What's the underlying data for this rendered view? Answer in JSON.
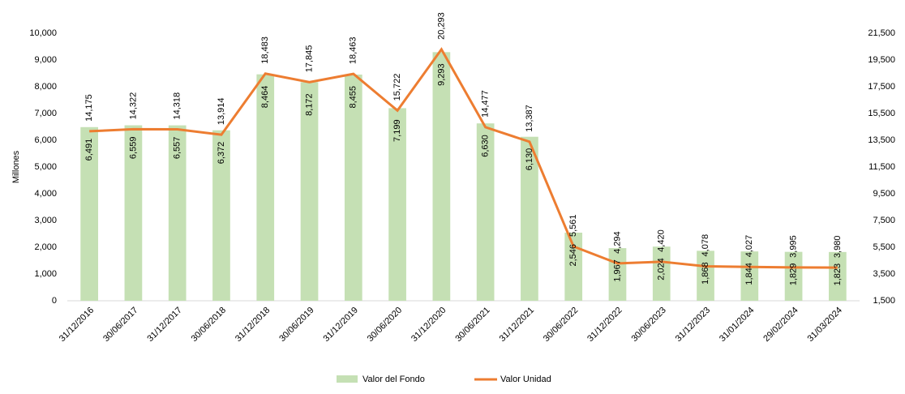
{
  "chart_data": {
    "type": "bar-line",
    "y_label": "Millones",
    "categories": [
      "31/12/2016",
      "30/06/2017",
      "31/12/2017",
      "30/06/2018",
      "31/12/2018",
      "30/06/2019",
      "31/12/2019",
      "30/06/2020",
      "31/12/2020",
      "30/06/2021",
      "31/12/2021",
      "30/06/2022",
      "31/12/2022",
      "30/06/2023",
      "31/12/2023",
      "31/01/2024",
      "29/02/2024",
      "31/03/2024"
    ],
    "series": [
      {
        "name": "Valor del Fondo",
        "type": "bar",
        "color": "#c5e0b4",
        "axis": "y",
        "values": [
          6491,
          6559,
          6557,
          6372,
          8464,
          8172,
          8455,
          7199,
          9293,
          6630,
          6130,
          2546,
          1967,
          2024,
          1868,
          1844,
          1829,
          1823
        ],
        "value_labels": [
          "6,491",
          "6,559",
          "6,557",
          "6,372",
          "8,464",
          "8,172",
          "8,455",
          "7,199",
          "9,293",
          "6,630",
          "6,130",
          "2,546",
          "1,967",
          "2,024",
          "1,868",
          "1,844",
          "1,829",
          "1,823"
        ]
      },
      {
        "name": "Valor Unidad",
        "type": "line",
        "color": "#ed7d31",
        "axis": "y2",
        "values": [
          14175,
          14322,
          14318,
          13914,
          18483,
          17845,
          18463,
          15722,
          20293,
          14477,
          13387,
          5561,
          4294,
          4420,
          4078,
          4027,
          3995,
          3980
        ],
        "value_labels": [
          "14,175",
          "14,322",
          "14,318",
          "13,914",
          "18,483",
          "17,845",
          "18,463",
          "15,722",
          "20,293",
          "14,477",
          "13,387",
          "5,561",
          "4,294",
          "4,420",
          "4,078",
          "4,027",
          "3,995",
          "3,980"
        ]
      }
    ],
    "ylim": [
      0,
      10000
    ],
    "yticks": [
      0,
      {
        "value": 1000,
        "label": "1,000"
      },
      {
        "value": 2000,
        "label": "2,000"
      },
      {
        "value": 3000,
        "label": "3,000"
      },
      {
        "value": 4000,
        "label": "4,000"
      },
      {
        "value": 5000,
        "label": "5,000"
      },
      {
        "value": 6000,
        "label": "6,000"
      },
      {
        "value": 7000,
        "label": "7,000"
      },
      {
        "value": 8000,
        "label": "8,000"
      },
      {
        "value": 9000,
        "label": "9,000"
      },
      {
        "value": 10000,
        "label": "10,000"
      }
    ],
    "y2lim": [
      1500,
      21500
    ],
    "y2ticks": [
      {
        "value": 1500,
        "label": "1,500"
      },
      {
        "value": 3500,
        "label": "3,500"
      },
      {
        "value": 5500,
        "label": "5,500"
      },
      {
        "value": 7500,
        "label": "7,500"
      },
      {
        "value": 9500,
        "label": "9,500"
      },
      {
        "value": 11500,
        "label": "11,500"
      },
      {
        "value": 13500,
        "label": "13,500"
      },
      {
        "value": 15500,
        "label": "15,500"
      },
      {
        "value": 17500,
        "label": "17,500"
      },
      {
        "value": 19500,
        "label": "19,500"
      },
      {
        "value": 21500,
        "label": "21,500"
      }
    ],
    "legend": "bottom"
  }
}
